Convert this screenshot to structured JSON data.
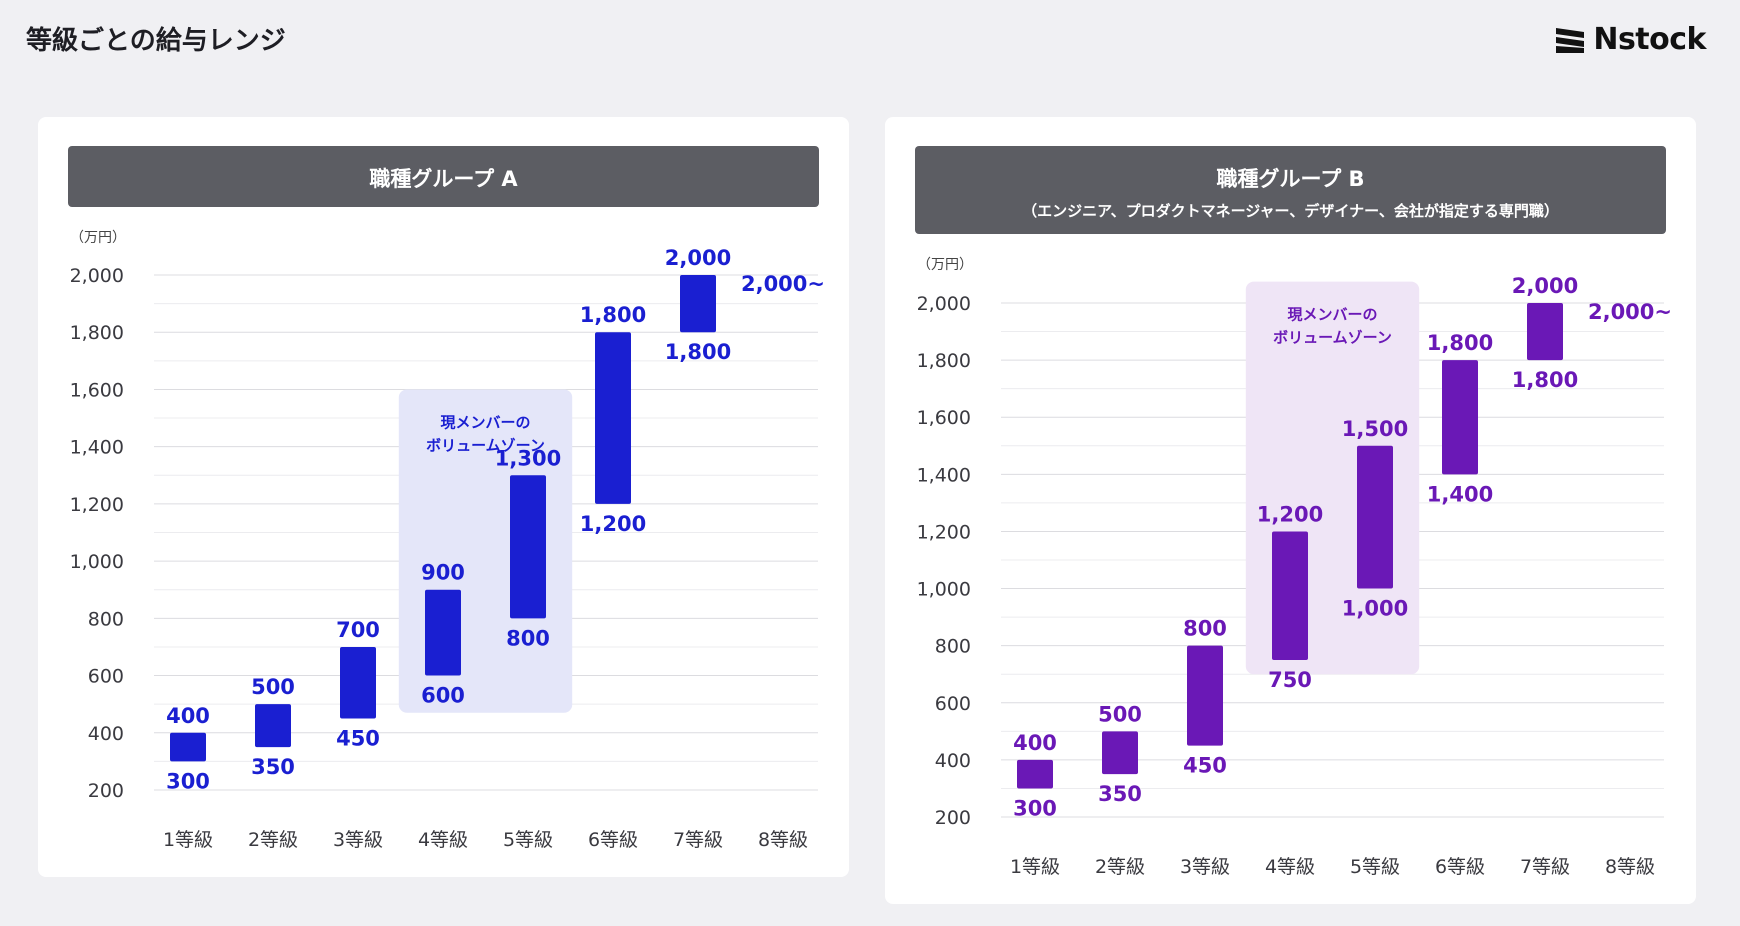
{
  "page": {
    "title": "等級ごとの給与レンジ",
    "logo": "Nstock"
  },
  "chart_data": [
    {
      "type": "bar",
      "subtype": "floating-range",
      "title": "職種グループ A",
      "subtitle": "",
      "unit": "（万円）",
      "color": "#1a1fd1",
      "zone_color": "#e4e6f9",
      "categories": [
        "1等級",
        "2等級",
        "3等級",
        "4等級",
        "5等級",
        "6等級",
        "7等級",
        "8等級"
      ],
      "ranges": [
        {
          "low": 300,
          "high": 400
        },
        {
          "low": 350,
          "high": 500
        },
        {
          "low": 450,
          "high": 700
        },
        {
          "low": 600,
          "high": 900
        },
        {
          "low": 800,
          "high": 1300
        },
        {
          "low": 1200,
          "high": 1800
        },
        {
          "low": 1800,
          "high": 2000
        },
        null
      ],
      "open_ended": {
        "category_index": 7,
        "label": "2,000~",
        "value": 2000
      },
      "volume_zone": {
        "label_line1": "現メンバーの",
        "label_line2": "ボリュームゾーン",
        "from_index": 3,
        "to_index": 4,
        "top_value": 1600,
        "bottom_value": 470
      },
      "yticks": [
        200,
        400,
        600,
        800,
        1000,
        1200,
        1400,
        1600,
        1800,
        2000
      ],
      "ytick_labels": [
        "200",
        "400",
        "600",
        "800",
        "1,000",
        "1,200",
        "1,400",
        "1,600",
        "1,800",
        "2,000"
      ],
      "ylim": [
        200,
        2000
      ],
      "grid": true
    },
    {
      "type": "bar",
      "subtype": "floating-range",
      "title": "職種グループ B",
      "subtitle": "（エンジニア、プロダクトマネージャー、デザイナー、会社が指定する専門職）",
      "unit": "（万円）",
      "color": "#6a18b6",
      "zone_color": "#efe5f6",
      "categories": [
        "1等級",
        "2等級",
        "3等級",
        "4等級",
        "5等級",
        "6等級",
        "7等級",
        "8等級"
      ],
      "ranges": [
        {
          "low": 300,
          "high": 400
        },
        {
          "low": 350,
          "high": 500
        },
        {
          "low": 450,
          "high": 800
        },
        {
          "low": 750,
          "high": 1200
        },
        {
          "low": 1000,
          "high": 1500
        },
        {
          "low": 1400,
          "high": 1800
        },
        {
          "low": 1800,
          "high": 2000
        },
        null
      ],
      "open_ended": {
        "category_index": 7,
        "label": "2,000~",
        "value": 2000
      },
      "volume_zone": {
        "label_line1": "現メンバーの",
        "label_line2": "ボリュームゾーン",
        "from_index": 3,
        "to_index": 4,
        "top_value": 2075,
        "bottom_value": 700
      },
      "yticks": [
        200,
        400,
        600,
        800,
        1000,
        1200,
        1400,
        1600,
        1800,
        2000
      ],
      "ytick_labels": [
        "200",
        "400",
        "600",
        "800",
        "1,000",
        "1,200",
        "1,400",
        "1,600",
        "1,800",
        "2,000"
      ],
      "ylim": [
        200,
        2000
      ],
      "grid": true
    }
  ]
}
